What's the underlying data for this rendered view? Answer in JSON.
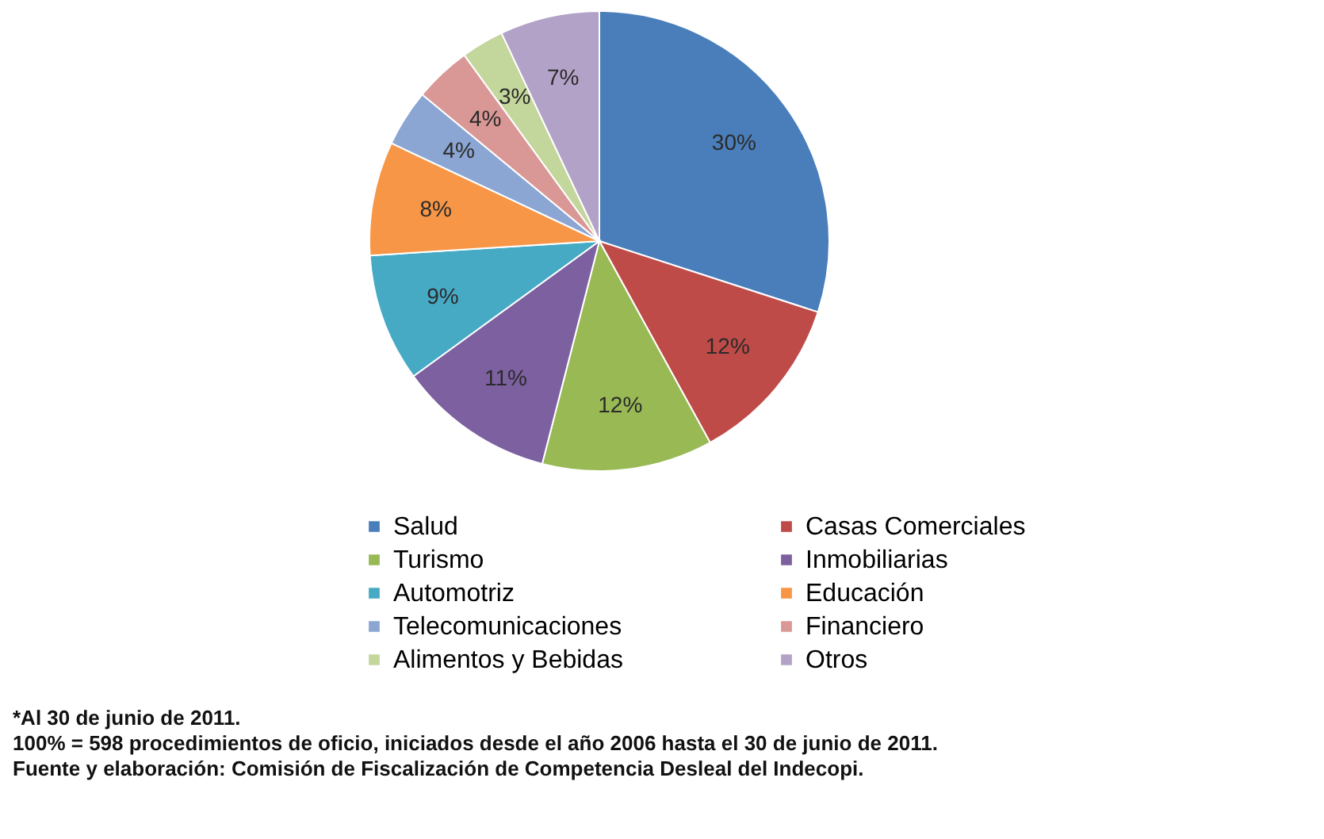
{
  "chart_data": {
    "type": "pie",
    "categories": [
      "Salud",
      "Casas Comerciales",
      "Turismo",
      "Inmobiliarias",
      "Automotriz",
      "Educación",
      "Telecomunicaciones",
      "Financiero",
      "Alimentos y Bebidas",
      "Otros"
    ],
    "values": [
      30,
      12,
      12,
      11,
      9,
      8,
      4,
      4,
      3,
      7
    ],
    "value_labels": [
      "30%",
      "12%",
      "12%",
      "11%",
      "9%",
      "8%",
      "4%",
      "4%",
      "3%",
      "7%"
    ],
    "colors": [
      "#4a7ebb",
      "#be4b48",
      "#98b954",
      "#7d60a0",
      "#46aac5",
      "#f79646",
      "#8ba6d3",
      "#d99795",
      "#c3d69b",
      "#b3a2c7"
    ],
    "legend": "bottom",
    "annotations": [
      "*Al 30 de junio de 2011.",
      "100% =  598 procedimientos de oficio, iniciados desde el año 2006 hasta el 30 de junio de 2011.",
      "Fuente y elaboración: Comisión de Fiscalización de Competencia Desleal del Indecopi."
    ]
  }
}
